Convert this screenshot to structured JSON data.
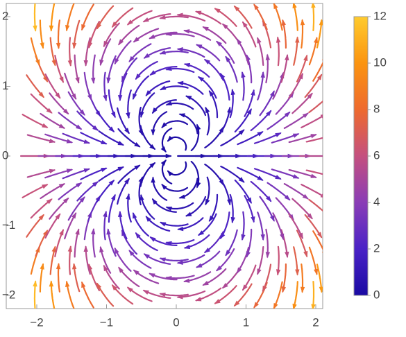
{
  "chart_data": {
    "type": "stream",
    "xlim": [
      -2,
      2
    ],
    "ylim": [
      -2,
      2
    ],
    "xticks": [
      {
        "value": -2,
        "label": "−2"
      },
      {
        "value": -1,
        "label": "−1"
      },
      0,
      1,
      2
    ],
    "yticks": [
      {
        "value": -2,
        "label": "−2"
      },
      {
        "value": -1,
        "label": "−1"
      },
      0,
      1,
      2
    ],
    "colorbar": {
      "lim": [
        0,
        12
      ],
      "ticks": [
        0,
        2,
        4,
        6,
        8,
        10,
        12
      ],
      "colors": [
        "#1a0aa3",
        "#4a22c6",
        "#8a3db6",
        "#c4507f",
        "#ee6a2e",
        "#fb9410",
        "#ffcb2e"
      ]
    }
  }
}
